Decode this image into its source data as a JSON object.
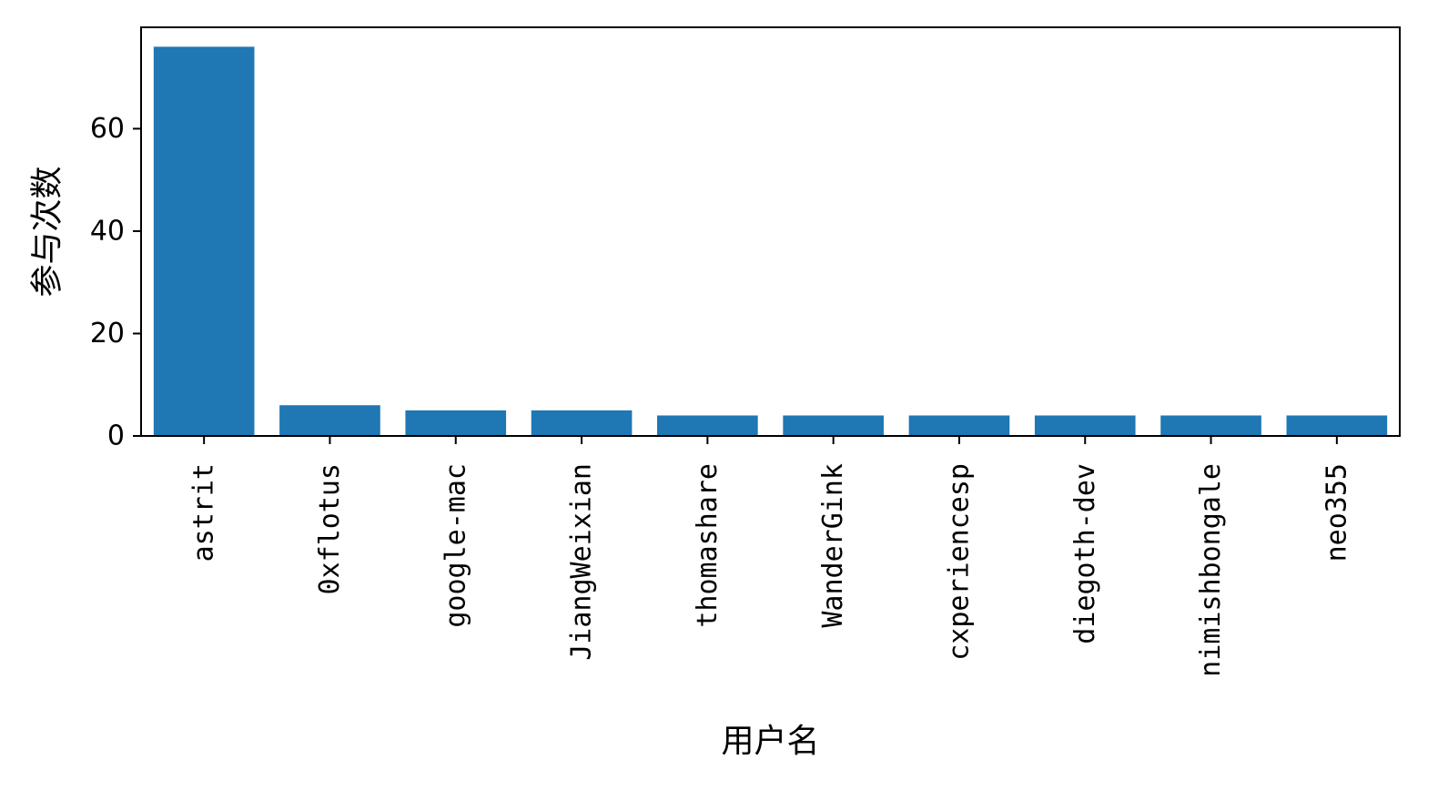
{
  "chart_data": {
    "type": "bar",
    "title": "",
    "xlabel": "用户名",
    "ylabel": "参与次数",
    "categories": [
      "astrit",
      "0xflotus",
      "google-mac",
      "JiangWeixian",
      "thomashare",
      "WanderGink",
      "cxperiencesp",
      "diegoth-dev",
      "nimishbongale",
      "neo355"
    ],
    "values": [
      76,
      6,
      5,
      5,
      4,
      4,
      4,
      4,
      4,
      4
    ],
    "ylim": [
      0,
      79.8
    ],
    "yticks": [
      0,
      20,
      40,
      60
    ],
    "grid": false,
    "legend": "none",
    "bar_color": "#1f77b4"
  }
}
